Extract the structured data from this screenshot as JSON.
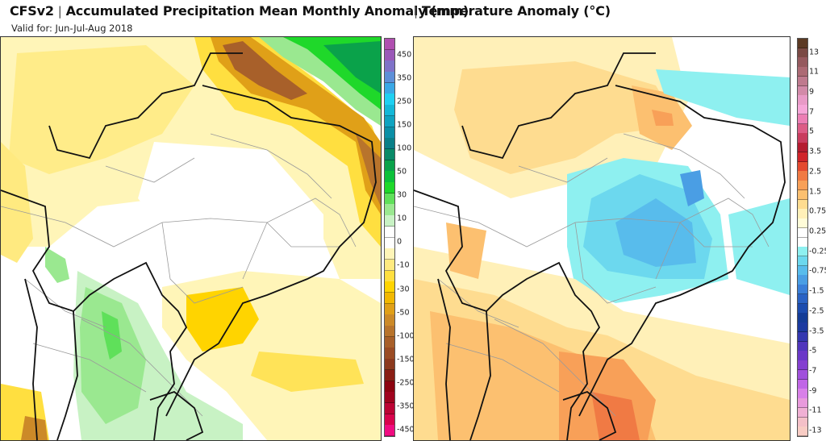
{
  "header": {
    "model": "CFSv2",
    "separator": "|",
    "precip_title": "Accumulated Precipitation Mean Monthly Anomaly (mm)",
    "temp_title": "Temperature Anomaly (°C)",
    "valid_for": "Valid for: Jun-Jul-Aug 2018"
  },
  "maps": [
    {
      "name": "precipitation-anomaly",
      "region": "South America / Brazil",
      "units": "mm",
      "features": [
        {
          "area": "northern Brazil coast (Amapá to Rio Grande do Norte)",
          "anomaly": "strongly negative (-50 to -150)"
        },
        {
          "area": "equatorial Atlantic offshore",
          "anomaly": "positive (30 to 100)"
        },
        {
          "area": "Amazon / north and west",
          "anomaly": "slightly negative (-10 to -30)"
        },
        {
          "area": "central Brazil",
          "anomaly": "near zero"
        },
        {
          "area": "southeast Brazil / São Paulo / Paraná",
          "anomaly": "negative (-10 to -50)"
        },
        {
          "area": "Paraguay / northern Argentina / Uruguay",
          "anomaly": "positive (10 to 50)"
        },
        {
          "area": "central Chile coast",
          "anomaly": "negative (-30 to -100)"
        }
      ]
    },
    {
      "name": "temperature-anomaly",
      "region": "South America / Brazil",
      "units": "°C",
      "features": [
        {
          "area": "central-east Brazil (Goiás, Minas Gerais, Bahia)",
          "anomaly": "negative (-0.25 to -1.5)"
        },
        {
          "area": "equatorial Atlantic band",
          "anomaly": "negative (-0.25 to -0.75)"
        },
        {
          "area": "Amazon / north",
          "anomaly": "positive (0.25 to 0.75)"
        },
        {
          "area": "Pará / Maranhão coast",
          "anomaly": "positive (0.75 to 1.5)"
        },
        {
          "area": "Uruguay / Rio Grande do Sul",
          "anomaly": "positive (1.5 to 2.5)"
        },
        {
          "area": "Argentina / southern Atlantic",
          "anomaly": "positive (0.25 to 1.5)"
        },
        {
          "area": "southeast Brazil (São Paulo)",
          "anomaly": "near zero"
        }
      ]
    }
  ],
  "colorbars": {
    "precip": {
      "labels": [
        "450",
        "350",
        "250",
        "150",
        "100",
        "50",
        "30",
        "10",
        "0",
        "-10",
        "-30",
        "-50",
        "-100",
        "-150",
        "-250",
        "-350",
        "-450"
      ],
      "colors": [
        "#b04fb0",
        "#9a58b8",
        "#7f72c8",
        "#5d8fd8",
        "#3aa8e6",
        "#1fd0f2",
        "#14b8d8",
        "#0fa3c0",
        "#0b8fa6",
        "#0a7f88",
        "#098a68",
        "#0aa24a",
        "#0cc03a",
        "#1fd82a",
        "#5fe05a",
        "#9ae890",
        "#c8f2c4",
        "#ffffff",
        "#ffffff",
        "#fff5b8",
        "#ffea80",
        "#ffdf40",
        "#ffd400",
        "#f2b800",
        "#e0a018",
        "#cc8a28",
        "#b8742c",
        "#a8602a",
        "#9a4c24",
        "#8c3a1e",
        "#8a1e14",
        "#8c0410",
        "#a0041e",
        "#bc0434",
        "#d8044c",
        "#f00c80"
      ]
    },
    "temp": {
      "labels": [
        "13",
        "11",
        "9",
        "7",
        "5",
        "3.5",
        "2.5",
        "1.5",
        "0.75",
        "0.25",
        "-0.25",
        "-0.75",
        "-1.5",
        "-2.5",
        "-3.5",
        "-5",
        "-7",
        "-9",
        "-11",
        "-13"
      ],
      "colors": [
        "#5c3a24",
        "#7a4a44",
        "#955a5e",
        "#ac6a74",
        "#bf7a8e",
        "#d28aa8",
        "#e89ac6",
        "#f6a6d8",
        "#ec7eb4",
        "#dc5c86",
        "#c83c5e",
        "#b41c30",
        "#d0242a",
        "#e44a30",
        "#f07a44",
        "#f8a058",
        "#fcc070",
        "#fedc90",
        "#fff0b8",
        "#fffcd8",
        "#ffffff",
        "#ffffff",
        "#8ef0f0",
        "#6cd8ee",
        "#58bcec",
        "#4a9ee4",
        "#3a7ed8",
        "#2a62c4",
        "#1c4cae",
        "#143c96",
        "#1c3aa0",
        "#3438b0",
        "#5036bc",
        "#6a38c8",
        "#8440d0",
        "#a050dc",
        "#c066e6",
        "#d880e8",
        "#e89adc",
        "#f0b0d4",
        "#f4c0c8",
        "#f8ccc4"
      ]
    }
  }
}
